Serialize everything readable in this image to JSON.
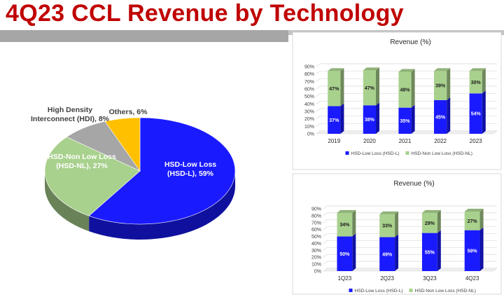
{
  "page": {
    "title": "4Q23 CCL Revenue by Technology"
  },
  "chart_data": [
    {
      "type": "pie",
      "title": "",
      "labels": [
        "HSD-Low Loss (HSD-L), 59%",
        "HSD-Non Low Loss (HSD-NL), 27%",
        "High Density Interconnect (HDI), 8%",
        "Others, 6%"
      ],
      "label_lines": [
        [
          "HSD-Low Loss",
          "(HSD-L), 59%"
        ],
        [
          "HSD-Non Low Loss",
          "(HSD-NL), 27%"
        ],
        [
          "High Density",
          "Interconnect (HDI), 8%"
        ],
        [
          "Others, 6%"
        ]
      ],
      "values": [
        59,
        27,
        8,
        6
      ],
      "colors": [
        "#1a1aff",
        "#a9d18e",
        "#a6a6a6",
        "#ffc000"
      ],
      "three_d": true
    },
    {
      "type": "bar",
      "stacked": true,
      "title": "Revenue (%)",
      "categories": [
        "2019",
        "2020",
        "2021",
        "2022",
        "2023"
      ],
      "series": [
        {
          "name": "HSD-Low Loss (HSD-L)",
          "values": [
            37,
            38,
            35,
            45,
            54
          ],
          "labels": [
            "37%",
            "38%",
            "35%",
            "45%",
            "54%"
          ],
          "color": "#1a1aff"
        },
        {
          "name": "HSD-Non Low Loss (HSD-NL)",
          "values": [
            47,
            47,
            48,
            39,
            30
          ],
          "labels": [
            "47%",
            "47%",
            "48%",
            "39%",
            "30%"
          ],
          "color": "#a9d18e"
        }
      ],
      "ylim": [
        0,
        90
      ],
      "yticks": [
        "0%",
        "10%",
        "20%",
        "30%",
        "40%",
        "50%",
        "60%",
        "70%",
        "80%",
        "90%"
      ],
      "grid": true,
      "legend": "bottom"
    },
    {
      "type": "bar",
      "stacked": true,
      "title": "Revenue (%)",
      "categories": [
        "1Q23",
        "2Q23",
        "3Q23",
        "4Q23"
      ],
      "series": [
        {
          "name": "HSD-Low Loss (HSD-L)",
          "values": [
            50,
            49,
            55,
            59
          ],
          "labels": [
            "50%",
            "49%",
            "55%",
            "59%"
          ],
          "color": "#1a1aff"
        },
        {
          "name": "HSD-Non Low Loss (HSD-NL)",
          "values": [
            34,
            33,
            29,
            27
          ],
          "labels": [
            "34%",
            "33%",
            "29%",
            "27%"
          ],
          "color": "#a9d18e"
        }
      ],
      "ylim": [
        0,
        90
      ],
      "yticks": [
        "0%",
        "10%",
        "20%",
        "30%",
        "40%",
        "50%",
        "60%",
        "70%",
        "80%",
        "90%"
      ],
      "grid": true,
      "legend": "bottom"
    }
  ]
}
